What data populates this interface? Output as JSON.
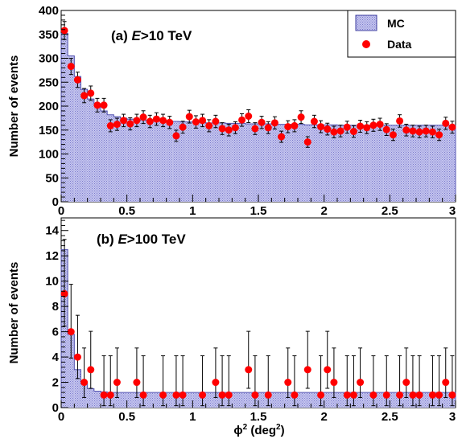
{
  "chart_data": [
    {
      "panel": "a",
      "type": "histogram-with-errorbars",
      "annotation": {
        "prefix": "(a) ",
        "italic": "E",
        "suffix": ">10 TeV"
      },
      "ylabel": "Number of events",
      "xlim": [
        0,
        3
      ],
      "ylim": [
        0,
        400
      ],
      "x_ticks": [
        0,
        0.5,
        1,
        1.5,
        2,
        2.5,
        3
      ],
      "x_tick_labels": [
        "0",
        "0.5",
        "1",
        "1.5",
        "2",
        "2.5",
        "3"
      ],
      "y_ticks": [
        0,
        50,
        100,
        150,
        200,
        250,
        300,
        350,
        400
      ],
      "y_tick_labels": [
        "0",
        "50",
        "100",
        "150",
        "200",
        "250",
        "300",
        "350",
        "400"
      ],
      "legend": {
        "position": "top-right",
        "entries": [
          "MC",
          "Data"
        ]
      },
      "bin_width": 0.05,
      "series": [
        {
          "name": "MC",
          "kind": "histogram",
          "color": "#9a9adc",
          "values": [
            352,
            305,
            262,
            235,
            215,
            205,
            190,
            182,
            178,
            175,
            173,
            172,
            171,
            170,
            170,
            169,
            168,
            168,
            167,
            167,
            166,
            166,
            165,
            165,
            165,
            164,
            164,
            164,
            163,
            163,
            163,
            163,
            162,
            162,
            162,
            162,
            162,
            161,
            161,
            161,
            161,
            161,
            160,
            160,
            160,
            160,
            160,
            160,
            160,
            160,
            160,
            160,
            160,
            160,
            160,
            160,
            160,
            160,
            160,
            160
          ]
        },
        {
          "name": "Data",
          "kind": "points",
          "color": "#ff0000",
          "x": [
            0.025,
            0.075,
            0.125,
            0.175,
            0.225,
            0.275,
            0.325,
            0.375,
            0.425,
            0.475,
            0.525,
            0.575,
            0.625,
            0.675,
            0.725,
            0.775,
            0.825,
            0.875,
            0.925,
            0.975,
            1.025,
            1.075,
            1.125,
            1.175,
            1.225,
            1.275,
            1.325,
            1.375,
            1.425,
            1.475,
            1.525,
            1.575,
            1.625,
            1.675,
            1.725,
            1.775,
            1.825,
            1.875,
            1.925,
            1.975,
            2.025,
            2.075,
            2.125,
            2.175,
            2.225,
            2.275,
            2.325,
            2.375,
            2.425,
            2.475,
            2.525,
            2.575,
            2.625,
            2.675,
            2.725,
            2.775,
            2.825,
            2.875,
            2.925,
            2.975
          ],
          "y": [
            358,
            283,
            255,
            222,
            227,
            202,
            202,
            159,
            162,
            170,
            163,
            170,
            177,
            168,
            173,
            170,
            166,
            138,
            156,
            178,
            167,
            170,
            159,
            168,
            153,
            150,
            155,
            171,
            179,
            153,
            166,
            155,
            165,
            136,
            157,
            159,
            177,
            125,
            168,
            157,
            152,
            146,
            148,
            156,
            147,
            158,
            155,
            160,
            162,
            151,
            140,
            169,
            150,
            148,
            146,
            148,
            146,
            140,
            164,
            156
          ]
        }
      ]
    },
    {
      "panel": "b",
      "type": "histogram-with-errorbars",
      "annotation": {
        "prefix": "(b) ",
        "italic": "E",
        "suffix": ">100 TeV"
      },
      "xlabel_parts": {
        "base": "ϕ",
        "sup1": "2",
        "mid": " (deg",
        "sup2": "2",
        "end": ")"
      },
      "ylabel": "Number of events",
      "xlim": [
        0,
        3
      ],
      "ylim": [
        0,
        15
      ],
      "x_ticks": [
        0,
        0.5,
        1,
        1.5,
        2,
        2.5,
        3
      ],
      "x_tick_labels": [
        "0",
        "0.5",
        "1",
        "1.5",
        "2",
        "2.5",
        "3"
      ],
      "y_ticks": [
        0,
        2,
        4,
        6,
        8,
        10,
        12,
        14
      ],
      "y_tick_labels": [
        "0",
        "2",
        "4",
        "6",
        "8",
        "10",
        "12",
        "14"
      ],
      "bin_width": 0.05,
      "series": [
        {
          "name": "MC",
          "kind": "histogram",
          "color": "#9a9adc",
          "values": [
            12.5,
            5.8,
            3.0,
            1.9,
            1.5,
            1.3,
            1.25,
            1.2,
            1.2,
            1.2,
            1.2,
            1.2,
            1.2,
            1.2,
            1.2,
            1.2,
            1.2,
            1.2,
            1.2,
            1.2,
            1.2,
            1.2,
            1.2,
            1.2,
            1.2,
            1.2,
            1.2,
            1.2,
            1.2,
            1.2,
            1.2,
            1.2,
            1.2,
            1.2,
            1.2,
            1.2,
            1.2,
            1.2,
            1.2,
            1.2,
            1.2,
            1.2,
            1.2,
            1.2,
            1.2,
            1.2,
            1.2,
            1.2,
            1.2,
            1.2,
            1.2,
            1.2,
            1.2,
            1.2,
            1.2,
            1.2,
            1.2,
            1.2,
            1.2,
            1.2
          ]
        },
        {
          "name": "Data",
          "kind": "points",
          "color": "#ff0000",
          "x": [
            0.025,
            0.075,
            0.125,
            0.175,
            0.225,
            0.325,
            0.375,
            0.425,
            0.575,
            0.625,
            0.775,
            0.875,
            0.925,
            1.075,
            1.175,
            1.225,
            1.275,
            1.425,
            1.475,
            1.575,
            1.725,
            1.775,
            1.875,
            1.975,
            2.025,
            2.075,
            2.175,
            2.225,
            2.275,
            2.375,
            2.475,
            2.575,
            2.625,
            2.675,
            2.725,
            2.825,
            2.875,
            2.925,
            2.975
          ],
          "y": [
            9,
            6,
            4,
            2,
            3,
            1,
            1,
            2,
            2,
            1,
            1,
            1,
            1,
            1,
            2,
            1,
            1,
            3,
            1,
            1,
            2,
            1,
            3,
            1,
            3,
            2,
            1,
            1,
            2,
            1,
            1,
            1,
            2,
            1,
            1,
            1,
            1,
            2,
            1
          ]
        }
      ]
    }
  ]
}
